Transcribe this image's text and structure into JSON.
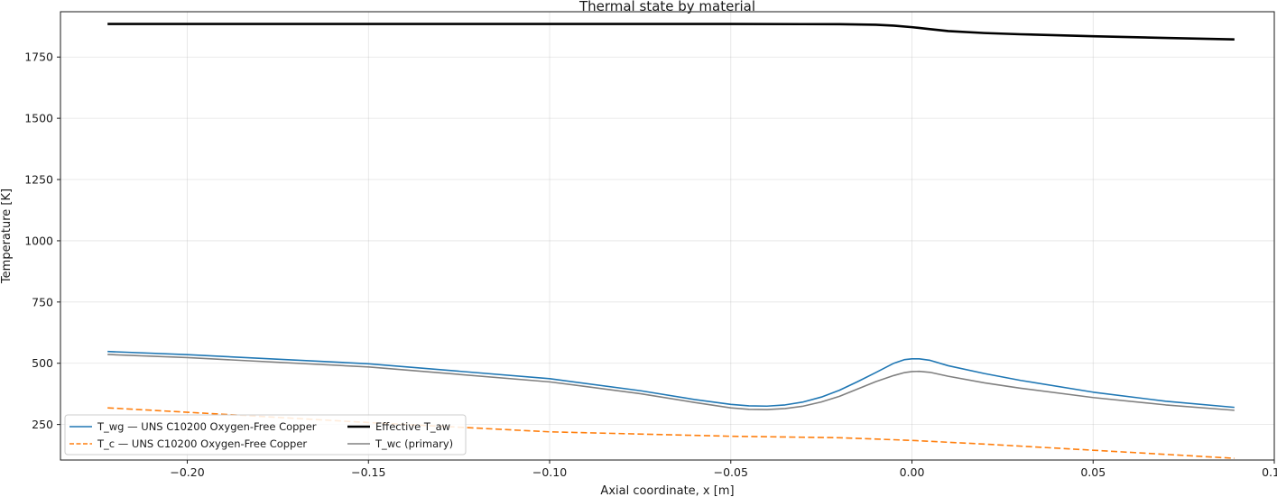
{
  "chart_data": {
    "type": "line",
    "title": "Thermal state by material",
    "xlabel": "Axial coordinate, x [m]",
    "ylabel": "Temperature [K]",
    "xlim": [
      -0.235,
      0.1
    ],
    "ylim": [
      105,
      1935
    ],
    "xticks": [
      -0.2,
      -0.15,
      -0.1,
      -0.05,
      0.0,
      0.05,
      0.1
    ],
    "xtick_labels": [
      "−0.20",
      "−0.15",
      "−0.10",
      "−0.05",
      "0.00",
      "0.05",
      "0.10"
    ],
    "yticks": [
      250,
      500,
      750,
      1000,
      1250,
      1500,
      1750
    ],
    "ytick_labels": [
      "250",
      "500",
      "750",
      "1000",
      "1250",
      "1500",
      "1750"
    ],
    "grid": true,
    "legend_position": "lower-left",
    "series": [
      {
        "name": "T_wg — UNS C10200 Oxygen-Free Copper",
        "color": "#1f77b4",
        "style": "solid",
        "x": [
          -0.222,
          -0.2,
          -0.15,
          -0.1,
          -0.075,
          -0.06,
          -0.05,
          -0.045,
          -0.04,
          -0.035,
          -0.03,
          -0.025,
          -0.02,
          -0.015,
          -0.01,
          -0.005,
          -0.002,
          0.0,
          0.002,
          0.005,
          0.01,
          0.02,
          0.03,
          0.05,
          0.07,
          0.089
        ],
        "y": [
          548,
          535,
          498,
          437,
          388,
          352,
          332,
          326,
          325,
          330,
          342,
          362,
          390,
          425,
          462,
          500,
          515,
          518,
          518,
          512,
          490,
          458,
          430,
          382,
          345,
          320
        ]
      },
      {
        "name": "T_c — UNS C10200 Oxygen-Free Copper",
        "color": "#ff7f0e",
        "style": "dashed",
        "x": [
          -0.222,
          -0.2,
          -0.15,
          -0.1,
          -0.05,
          -0.02,
          0.0,
          0.02,
          0.05,
          0.089
        ],
        "y": [
          318,
          300,
          258,
          220,
          202,
          196,
          185,
          170,
          145,
          112
        ]
      },
      {
        "name": "Effective T_aw",
        "color": "#000000",
        "style": "solid",
        "x": [
          -0.222,
          -0.15,
          -0.1,
          -0.05,
          -0.02,
          -0.01,
          -0.005,
          0.0,
          0.005,
          0.01,
          0.02,
          0.03,
          0.05,
          0.07,
          0.089
        ],
        "y": [
          1885,
          1885,
          1885,
          1885,
          1884,
          1882,
          1878,
          1872,
          1864,
          1856,
          1848,
          1843,
          1835,
          1828,
          1822
        ]
      },
      {
        "name": "T_wc (primary)",
        "color": "#808080",
        "style": "solid",
        "x": [
          -0.222,
          -0.2,
          -0.15,
          -0.1,
          -0.075,
          -0.06,
          -0.05,
          -0.045,
          -0.04,
          -0.035,
          -0.03,
          -0.025,
          -0.02,
          -0.015,
          -0.01,
          -0.005,
          -0.002,
          0.0,
          0.002,
          0.005,
          0.01,
          0.02,
          0.03,
          0.05,
          0.07,
          0.089
        ],
        "y": [
          536,
          523,
          485,
          424,
          376,
          340,
          318,
          312,
          311,
          315,
          325,
          342,
          365,
          395,
          425,
          450,
          462,
          466,
          467,
          463,
          447,
          420,
          398,
          360,
          330,
          308
        ]
      }
    ]
  }
}
